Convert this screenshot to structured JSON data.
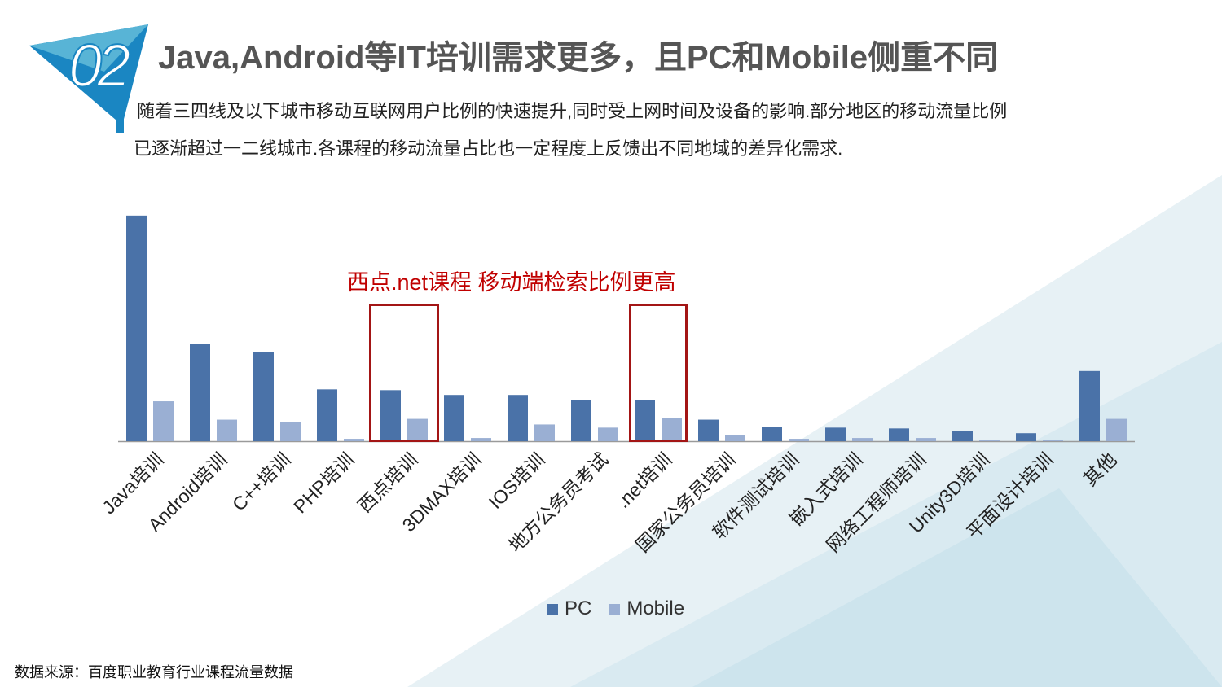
{
  "header": {
    "badge_number": "02",
    "title": "Java,Android等IT培训需求更多，且PC和Mobile侧重不同"
  },
  "description": {
    "line1": "随着三四线及以下城市移动互联网用户比例的快速提升,同时受上网时间及设备的影响.部分地区的移动流量比例",
    "line2": "已逐渐超过一二线城市.各课程的移动流量占比也一定程度上反馈出不同地域的差异化需求."
  },
  "annotation": {
    "text": "西点.net课程 移动端检索比例更高",
    "highlighted_categories": [
      "西点培训",
      ".net培训"
    ]
  },
  "legend": {
    "items": [
      {
        "label": "PC",
        "color": "#4a72a8"
      },
      {
        "label": "Mobile",
        "color": "#9aafd3"
      }
    ]
  },
  "source": "数据来源：百度职业教育行业课程流量数据",
  "colors": {
    "pc": "#4a72a8",
    "mobile": "#9aafd3",
    "highlight": "#a31515",
    "accent": "#1a86c2"
  },
  "chart_data": {
    "type": "bar",
    "categories": [
      "Java培训",
      "Android培训",
      "C++培训",
      "PHP培训",
      "西点培训",
      "3DMAX培训",
      "IOS培训",
      "地方公务员考试",
      ".net培训",
      "国家公务员培训",
      "软件测试培训",
      "嵌入式培训",
      "网络工程师培训",
      "Unity3D培训",
      "平面设计培训",
      "其他"
    ],
    "series": [
      {
        "name": "PC",
        "values": [
          283,
          122,
          112,
          65,
          64,
          58,
          58,
          52,
          52,
          27,
          18,
          17,
          16,
          13,
          10,
          88
        ]
      },
      {
        "name": "Mobile",
        "values": [
          50,
          27,
          24,
          3,
          28,
          4,
          21,
          17,
          29,
          8,
          3,
          4,
          4,
          1,
          1,
          28
        ]
      }
    ],
    "ylim": [
      0,
      290
    ],
    "grid": false,
    "legend_position": "bottom"
  }
}
